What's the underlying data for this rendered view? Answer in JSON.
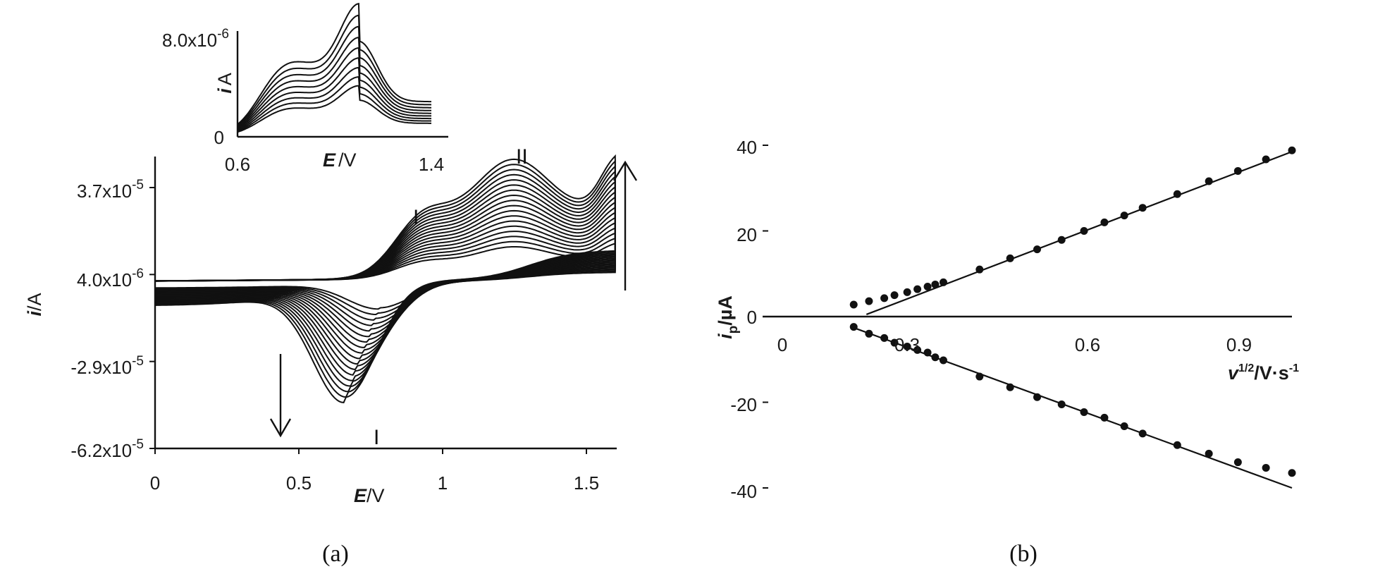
{
  "figure": {
    "panels": [
      {
        "id": "a",
        "caption": "(a)",
        "peak_labels": [
          "II",
          "I",
          "I"
        ],
        "arrows": [
          "up",
          "down"
        ]
      },
      {
        "id": "b",
        "caption": "(b)"
      }
    ]
  },
  "chart_data": [
    {
      "type": "line",
      "panel": "a",
      "description_of_traces": "cyclic voltammograms at increasing scan rate",
      "x_label": {
        "italic": "E",
        "unit": "/V"
      },
      "y_label": {
        "italic": "i",
        "unit": "/A"
      },
      "xlim": [
        0,
        1.6
      ],
      "ylim": [
        -6.2e-05,
        5.4e-05
      ],
      "x_ticks": [
        0,
        0.5,
        1,
        1.5
      ],
      "x_tick_labels": [
        "0",
        "0.5",
        "1",
        "1.5"
      ],
      "y_ticks": [
        3.7e-05,
        4e-06,
        -2.9e-05,
        -6.2e-05
      ],
      "y_tick_labels": [
        {
          "base": "3.7x10",
          "exp": "-5"
        },
        {
          "base": "4.0x10",
          "exp": "-6"
        },
        {
          "base": "-2.9x10",
          "exp": "-5"
        },
        {
          "base": "-6.2x10",
          "exp": "-5"
        }
      ],
      "series_count": 18,
      "anodic_peak_I_potential": 0.93,
      "anodic_peak_II_potential": 1.25,
      "anodic_peak_II_max": 4.5e-05,
      "anodic_peak_II_min": 1.2e-05,
      "cathodic_peak_potential_range": [
        0.66,
        0.78
      ],
      "cathodic_peak_max": -4.4e-05,
      "cathodic_peak_min": -1e-05
    },
    {
      "type": "line",
      "panel": "a-inset",
      "x_label": {
        "italic": "E",
        "unit": "/V"
      },
      "y_label": {
        "italic": "i",
        "unit": "A"
      },
      "xlim": [
        0.6,
        1.4
      ],
      "ylim": [
        0,
        8e-06
      ],
      "x_ticks": [
        0.6,
        1.4
      ],
      "x_tick_labels": [
        "0.6",
        "1.4"
      ],
      "y_ticks": [
        0,
        8e-06
      ],
      "y_tick_labels": [
        {
          "base": "0",
          "exp": ""
        },
        {
          "base": "8.0x10",
          "exp": "-6"
        }
      ],
      "series_count": 9,
      "peak_potential": 1.1,
      "peak_max": 7.7e-06,
      "peak_min": 3.6e-06
    },
    {
      "type": "scatter",
      "panel": "b",
      "x_label": {
        "italic": "v",
        "sup": "1/2",
        "unit": "/V·s",
        "unit_sup": "-1"
      },
      "y_label": {
        "italic": "i",
        "sub": "p",
        "unit": "/µA"
      },
      "xlim": [
        0,
        1.0
      ],
      "ylim": [
        -40,
        40
      ],
      "x_ticks": [
        0,
        0.3,
        0.6,
        0.9
      ],
      "x_tick_labels": [
        "0",
        "0.3",
        "0.6",
        "0.9"
      ],
      "y_ticks": [
        40,
        20,
        0,
        -20,
        -40
      ],
      "y_tick_labels": [
        "40",
        "20",
        "0",
        "-20",
        "-40"
      ],
      "series": [
        {
          "x": [
            0.14,
            0.17,
            0.2,
            0.22,
            0.245,
            0.265,
            0.285,
            0.3,
            0.316,
            0.387,
            0.447,
            0.5,
            0.548,
            0.592,
            0.632,
            0.671,
            0.707,
            0.775,
            0.837,
            0.894,
            0.949,
            1.0
          ],
          "y": [
            2.8,
            3.6,
            4.3,
            5.0,
            5.7,
            6.4,
            7.0,
            7.5,
            8.0,
            11.0,
            13.6,
            15.7,
            17.9,
            20.0,
            22.0,
            23.6,
            25.4,
            28.6,
            31.6,
            34.0,
            36.7,
            38.8
          ],
          "fit": {
            "x": [
              0.165,
              1.0
            ],
            "y": [
              0.5,
              38.5
            ]
          }
        },
        {
          "x": [
            0.14,
            0.17,
            0.2,
            0.22,
            0.245,
            0.265,
            0.285,
            0.3,
            0.316,
            0.387,
            0.447,
            0.5,
            0.548,
            0.592,
            0.632,
            0.671,
            0.707,
            0.775,
            0.837,
            0.894,
            0.949,
            1.0
          ],
          "y": [
            -2.4,
            -4.0,
            -5.0,
            -6.1,
            -7.0,
            -7.8,
            -8.4,
            -9.5,
            -10.2,
            -14.0,
            -16.5,
            -18.8,
            -20.5,
            -22.3,
            -23.6,
            -25.6,
            -27.3,
            -30.0,
            -32.0,
            -34.0,
            -35.3,
            -36.5
          ],
          "fit": {
            "x": [
              0.14,
              1.0
            ],
            "y": [
              -2.6,
              -40.0
            ]
          }
        }
      ]
    }
  ]
}
